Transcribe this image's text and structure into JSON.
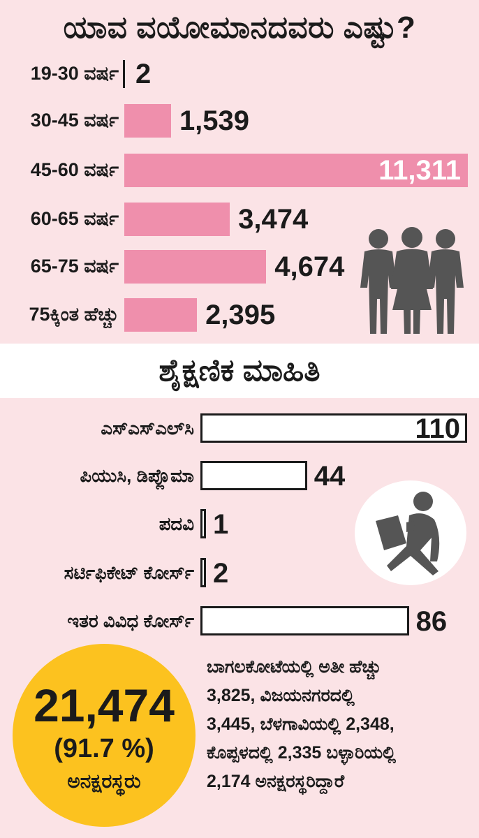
{
  "header": {
    "title": "ಯಾವ ವಯೋಮಾನದವರು ಎಷ್ಟು?"
  },
  "chart_data": [
    {
      "type": "bar",
      "orientation": "horizontal",
      "categories": [
        "19-30 ವರ್ಷ",
        "30-45 ವರ್ಷ",
        "45-60 ವರ್ಷ",
        "60-65 ವರ್ಷ",
        "65-75 ವರ್ಷ",
        "75ಕ್ಕಿಂತ ಹೆಚ್ಚು"
      ],
      "values": [
        2,
        1539,
        11311,
        3474,
        4674,
        2395
      ],
      "data_labels": [
        "2",
        "1,539",
        "11,311",
        "3,474",
        "4,674",
        "2,395"
      ],
      "xlim": [
        0,
        11311
      ],
      "bar_color": "#ef8fac"
    },
    {
      "type": "bar",
      "orientation": "horizontal",
      "title": "ಶೈಕ್ಷಣಿಕ ಮಾಹಿತಿ",
      "categories": [
        "ಎಸ್‌ಎಸ್‌ಎಲ್‌ಸಿ",
        "ಪಿಯುಸಿ, ಡಿಪ್ಲೊಮಾ",
        "ಪದವಿ",
        "ಸರ್ಟಿಫಿಕೇಟ್ ಕೋರ್ಸ್",
        "ಇತರ ವಿವಿಧ ಕೋರ್ಸ್"
      ],
      "values": [
        110,
        44,
        1,
        2,
        86
      ],
      "data_labels": [
        "110",
        "44",
        "1",
        "2",
        "86"
      ],
      "xlim": [
        0,
        110
      ],
      "bar_color": "#ffffff"
    }
  ],
  "illiterate": {
    "count": "21,474",
    "percent": "(91.7 %)",
    "label": "ಅನಕ್ಷರಸ್ಥರು",
    "color": "#fcc21f"
  },
  "note": {
    "lines": [
      "ಬಾಗಲಕೋಟೆಯಲ್ಲಿ ಅತೀ ಹೆಚ್ಚು",
      "3,825, ವಿಜಯನಗರದಲ್ಲಿ",
      "3,445, ಬೆಳಗಾವಿಯಲ್ಲಿ 2,348,",
      "ಕೊಪ್ಪಳದಲ್ಲಿ 2,335 ಬಳ್ಳಾರಿಯಲ್ಲಿ",
      "2,174 ಅನಕ್ಷರಸ್ಥರಿದ್ದಾರೆ"
    ]
  },
  "icons": [
    "people-group-icon",
    "reading-person-icon"
  ],
  "colors": {
    "background": "#fbe3e6",
    "age_bar": "#ef8fac",
    "circle": "#fcc21f",
    "icon": "#555555"
  }
}
